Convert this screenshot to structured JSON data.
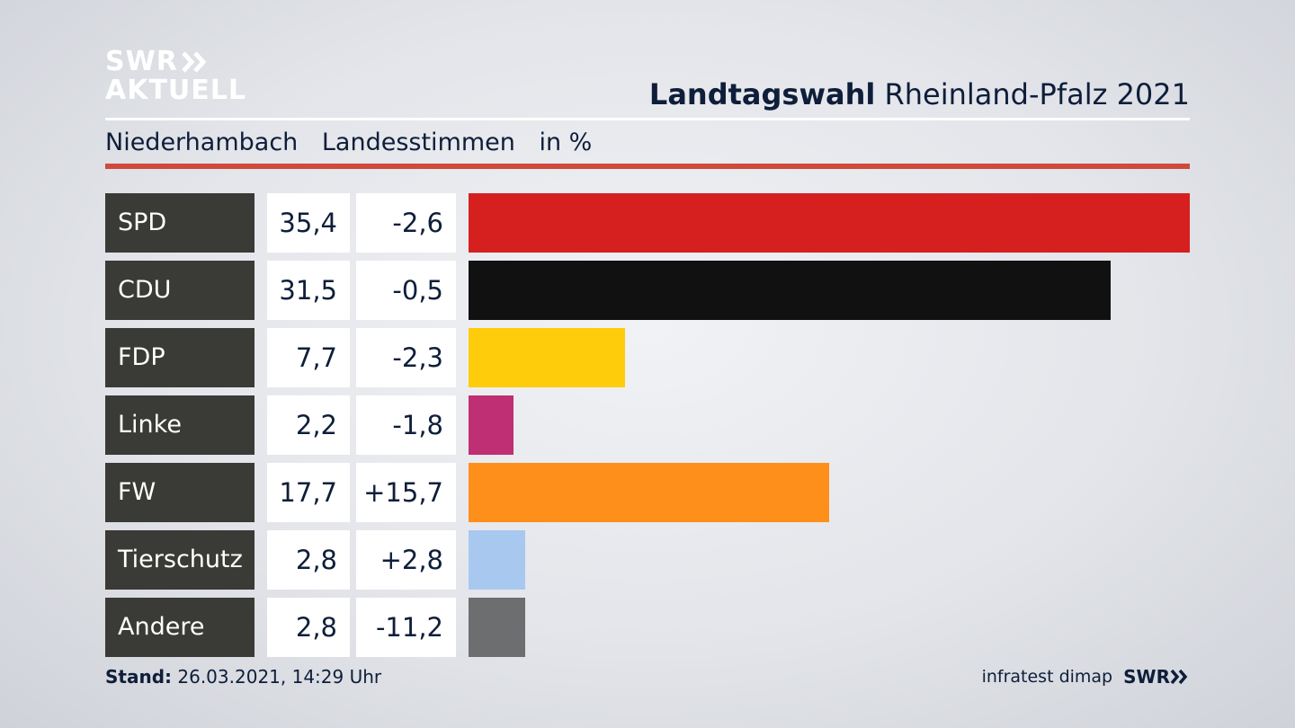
{
  "brand": {
    "logo_line1": "SWR",
    "logo_line2": "AKTUELL",
    "footer_source": "infratest dimap",
    "footer_logo": "SWR"
  },
  "header": {
    "title_bold": "Landtagswahl",
    "title_rest": "Rheinland-Pfalz 2021"
  },
  "subheader": {
    "place": "Niederhambach",
    "vote_type": "Landesstimmen",
    "unit": "in %"
  },
  "footer": {
    "stand_label": "Stand:",
    "stand_value": "26.03.2021, 14:29 Uhr"
  },
  "chart_data": {
    "type": "bar",
    "orientation": "horizontal",
    "categories": [
      "SPD",
      "CDU",
      "FDP",
      "Linke",
      "FW",
      "Tierschutz",
      "Andere"
    ],
    "values": [
      35.4,
      31.5,
      7.7,
      2.2,
      17.7,
      2.8,
      2.8
    ],
    "value_labels": [
      "35,4",
      "31,5",
      "7,7",
      "2,2",
      "17,7",
      "2,8",
      "2,8"
    ],
    "changes": [
      -2.6,
      -0.5,
      -2.3,
      -1.8,
      15.7,
      2.8,
      -11.2
    ],
    "change_labels": [
      "-2,6",
      "-0,5",
      "-2,3",
      "-1,8",
      "+15,7",
      "+2,8",
      "-11,2"
    ],
    "colors": [
      "#d62020",
      "#111111",
      "#ffcc0b",
      "#be2f74",
      "#ff8f1b",
      "#a9c8f0",
      "#6d6e70"
    ],
    "xlim": [
      0,
      35.4
    ],
    "grid": false
  }
}
